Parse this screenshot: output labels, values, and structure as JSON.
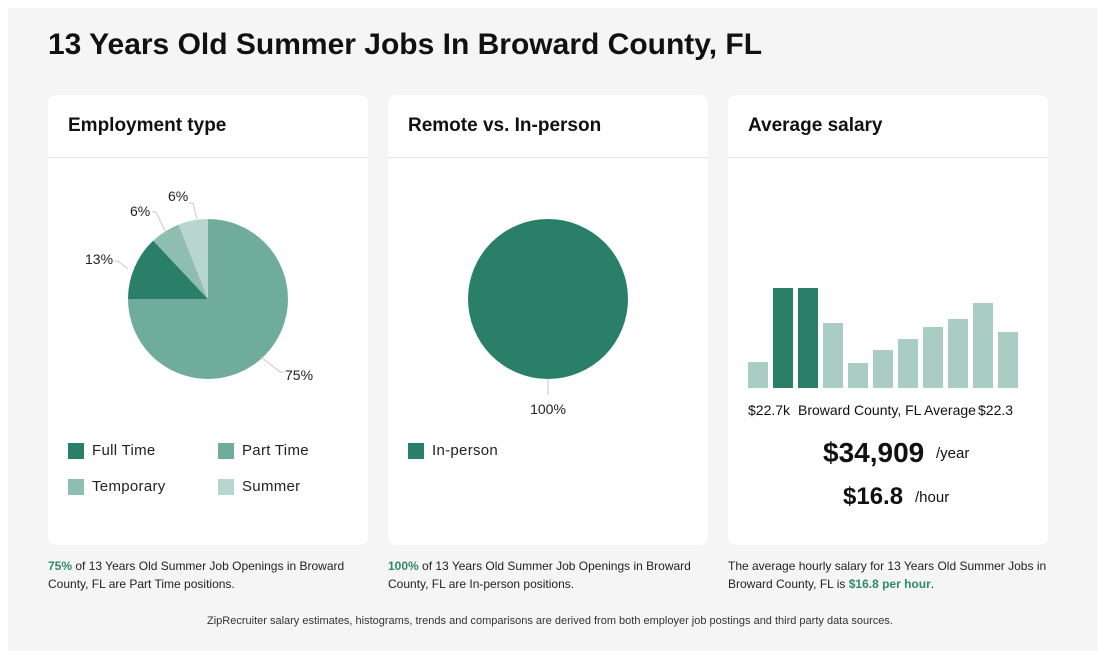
{
  "page": {
    "title": "13 Years Old Summer Jobs In Broward County, FL",
    "footnote": "ZipRecruiter salary estimates, histograms, trends and comparisons are derived from both employer job postings and third party data sources."
  },
  "colors": {
    "full_time": "#2a7f68",
    "part_time": "#6fac9b",
    "temporary": "#8fbdaf",
    "summer": "#b8d6cd",
    "in_person": "#2a7f68",
    "bar_dark": "#2a7f68",
    "bar_light": "#a9cdc3",
    "highlight": "#2f8a6a"
  },
  "employment": {
    "title": "Employment type",
    "legend": {
      "full_time": "Full Time",
      "part_time": "Part Time",
      "temporary": "Temporary",
      "summer": "Summer"
    },
    "caption_pct": "75%",
    "caption_text": " of 13 Years Old Summer Job Openings in Broward County, FL are Part Time positions."
  },
  "remote": {
    "title": "Remote vs. In-person",
    "legend": {
      "in_person": "In-person"
    },
    "caption_pct": "100%",
    "caption_text": " of 13 Years Old Summer Job Openings in Broward County, FL are In-person positions."
  },
  "salary": {
    "title": "Average salary",
    "low_label": "$22.7k",
    "mid_label": "Broward County, FL Average",
    "high_label": "$22.3",
    "yearly": "$34,909",
    "yearly_unit": "/year",
    "hourly": "$16.8",
    "hourly_unit": "/hour",
    "caption_text": "The average hourly salary for 13 Years Old Summer Jobs in Broward County, FL is ",
    "caption_value": "$16.8 per hour",
    "caption_end": "."
  },
  "chart_data": [
    {
      "type": "pie",
      "title": "Employment type",
      "categories": [
        "Part Time",
        "Full Time",
        "Temporary",
        "Summer"
      ],
      "values": [
        75,
        13,
        6,
        6
      ],
      "labels": [
        "75%",
        "13%",
        "6%",
        "6%"
      ],
      "colors": [
        "#6fac9b",
        "#2a7f68",
        "#8fbdaf",
        "#b8d6cd"
      ]
    },
    {
      "type": "pie",
      "title": "Remote vs. In-person",
      "categories": [
        "In-person"
      ],
      "values": [
        100
      ],
      "labels": [
        "100%"
      ],
      "colors": [
        "#2a7f68"
      ]
    },
    {
      "type": "bar",
      "title": "Average salary",
      "values": [
        26,
        100,
        100,
        65,
        25,
        38,
        49,
        61,
        69,
        85,
        56
      ],
      "highlight": [
        false,
        true,
        true,
        false,
        false,
        false,
        false,
        false,
        false,
        false,
        false
      ],
      "ylim": [
        0,
        100
      ]
    }
  ]
}
